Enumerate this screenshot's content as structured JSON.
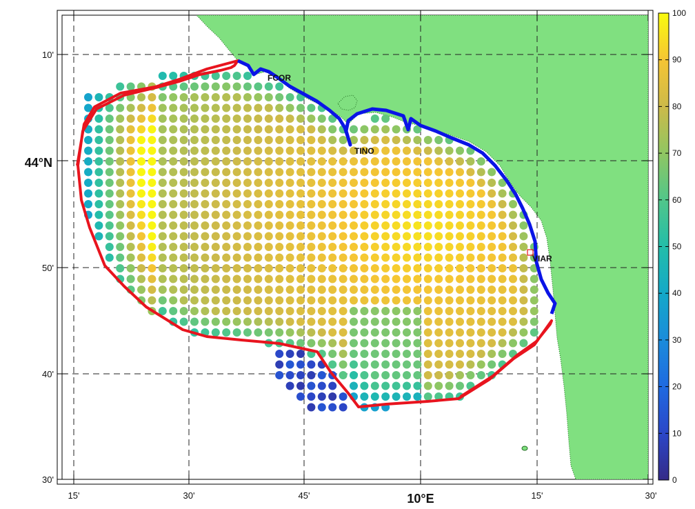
{
  "map": {
    "lon_ticks": [
      "15'",
      "30'",
      "45'",
      "10°E",
      "15'",
      "30'"
    ],
    "lat_ticks": [
      "30'",
      "40'",
      "50'",
      "44°N",
      "10'"
    ],
    "stations": [
      "FCOR",
      "TINO",
      "VIAR"
    ],
    "colors": {
      "land": "#80e080",
      "coast_tracks": "#0a14e6",
      "boundary": "#e8141e"
    }
  },
  "colorbar": {
    "min": 0,
    "max": 100,
    "ticks": [
      "0",
      "10",
      "20",
      "30",
      "40",
      "50",
      "60",
      "70",
      "80",
      "90",
      "100"
    ],
    "colormap": "parula"
  }
}
